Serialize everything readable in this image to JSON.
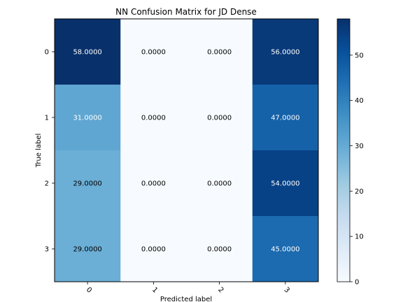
{
  "chart_data": {
    "type": "heatmap",
    "title": "NN Confusion Matrix for JD Dense",
    "xlabel": "Predicted label",
    "ylabel": "True label",
    "x_categories": [
      "0",
      "1",
      "2",
      "3"
    ],
    "y_categories": [
      "0",
      "1",
      "2",
      "3"
    ],
    "values": [
      [
        58,
        0,
        0,
        56
      ],
      [
        31,
        0,
        0,
        47
      ],
      [
        29,
        0,
        0,
        54
      ],
      [
        29,
        0,
        0,
        45
      ]
    ],
    "cell_labels": [
      [
        "58.0000",
        "0.0000",
        "0.0000",
        "56.0000"
      ],
      [
        "31.0000",
        "0.0000",
        "0.0000",
        "47.0000"
      ],
      [
        "29.0000",
        "0.0000",
        "0.0000",
        "54.0000"
      ],
      [
        "29.0000",
        "0.0000",
        "0.0000",
        "45.0000"
      ]
    ],
    "colormap": "Blues",
    "colorbar": {
      "range": [
        0,
        58
      ],
      "ticks": [
        "0",
        "10",
        "20",
        "30",
        "40",
        "50"
      ]
    },
    "grid": false
  }
}
